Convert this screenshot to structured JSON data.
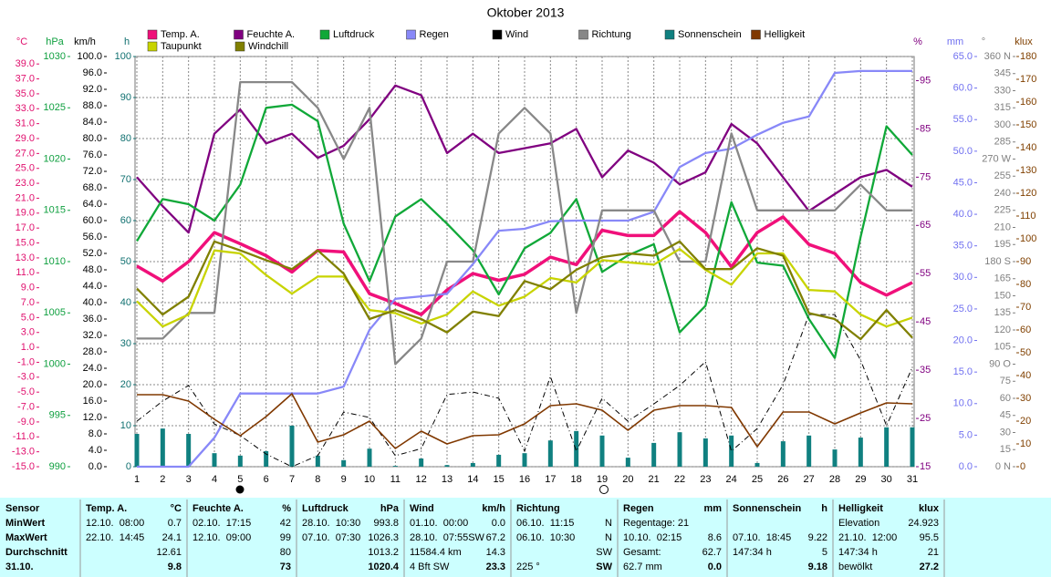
{
  "chart_data": {
    "type": "line",
    "title": "Oktober 2013",
    "categories": [
      1,
      2,
      3,
      4,
      5,
      6,
      7,
      8,
      9,
      10,
      11,
      12,
      13,
      14,
      15,
      16,
      17,
      18,
      19,
      20,
      21,
      22,
      23,
      24,
      25,
      26,
      27,
      28,
      29,
      30,
      31
    ],
    "grid": true,
    "axes": [
      {
        "unit": "°C",
        "color": "#e0106e",
        "ylim": [
          -15,
          40
        ],
        "yticks": [
          {
            "value": -15,
            "label": "-15.0"
          },
          {
            "value": -13,
            "label": "-13.0"
          },
          {
            "value": -11,
            "label": "-11.0"
          },
          {
            "value": -9,
            "label": "-9.0"
          },
          {
            "value": -7,
            "label": "-7.0"
          },
          {
            "value": -5,
            "label": "-5.0"
          },
          {
            "value": -3,
            "label": "-3.0"
          },
          {
            "value": -1,
            "label": "-1.0"
          },
          {
            "value": 1,
            "label": "1.0"
          },
          {
            "value": 3,
            "label": "3.0"
          },
          {
            "value": 5,
            "label": "5.0"
          },
          {
            "value": 7,
            "label": "7.0"
          },
          {
            "value": 9,
            "label": "9.0"
          },
          {
            "value": 11,
            "label": "11.0"
          },
          {
            "value": 13,
            "label": "13.0"
          },
          {
            "value": 15,
            "label": "15.0"
          },
          {
            "value": 17,
            "label": "17.0"
          },
          {
            "value": 19,
            "label": "19.0"
          },
          {
            "value": 21,
            "label": "21.0"
          },
          {
            "value": 23,
            "label": "23.0"
          },
          {
            "value": 25,
            "label": "25.0"
          },
          {
            "value": 27,
            "label": "27.0"
          },
          {
            "value": 29,
            "label": "29.0"
          },
          {
            "value": 31,
            "label": "31.0"
          },
          {
            "value": 33,
            "label": "33.0"
          },
          {
            "value": 35,
            "label": "35.0"
          },
          {
            "value": 37,
            "label": "37.0"
          },
          {
            "value": 39,
            "label": "39.0"
          }
        ]
      },
      {
        "unit": "hPa",
        "color": "#10a040",
        "ylim": [
          990,
          1030
        ],
        "yticks": [
          990,
          995,
          1000,
          1005,
          1010,
          1015,
          1020,
          1025,
          1030
        ]
      },
      {
        "unit": "km/h",
        "color": "#000000",
        "ylim": [
          0,
          100
        ],
        "yticks": [
          {
            "value": 0,
            "label": "0.0"
          },
          {
            "value": 4,
            "label": "4.0"
          },
          {
            "value": 8,
            "label": "8.0"
          },
          {
            "value": 12,
            "label": "12.0"
          },
          {
            "value": 16,
            "label": "16.0"
          },
          {
            "value": 20,
            "label": "20.0"
          },
          {
            "value": 24,
            "label": "24.0"
          },
          {
            "value": 28,
            "label": "28.0"
          },
          {
            "value": 32,
            "label": "32.0"
          },
          {
            "value": 36,
            "label": "36.0"
          },
          {
            "value": 40,
            "label": "40.0"
          },
          {
            "value": 44,
            "label": "44.0"
          },
          {
            "value": 48,
            "label": "48.0"
          },
          {
            "value": 52,
            "label": "52.0"
          },
          {
            "value": 56,
            "label": "56.0"
          },
          {
            "value": 60,
            "label": "60.0"
          },
          {
            "value": 64,
            "label": "64.0"
          },
          {
            "value": 68,
            "label": "68.0"
          },
          {
            "value": 72,
            "label": "72.0"
          },
          {
            "value": 76,
            "label": "76.0"
          },
          {
            "value": 80,
            "label": "80.0"
          },
          {
            "value": 84,
            "label": "84.0"
          },
          {
            "value": 88,
            "label": "88.0"
          },
          {
            "value": 92,
            "label": "92.0"
          },
          {
            "value": 96,
            "label": "96.0"
          },
          {
            "value": 100,
            "label": "100.0"
          }
        ]
      },
      {
        "unit": "h",
        "color": "#107070",
        "ylim": [
          0,
          100
        ],
        "yticks": [
          0,
          10,
          20,
          30,
          40,
          50,
          60,
          70,
          80,
          90,
          100
        ],
        "grid": true
      },
      {
        "unit": "%",
        "color": "#800080",
        "ylim": [
          15,
          100
        ],
        "yticks": [
          15,
          25,
          35,
          45,
          55,
          65,
          75,
          85,
          95
        ]
      },
      {
        "unit": "mm",
        "color": "#7070f0",
        "ylim": [
          0,
          65
        ],
        "yticks": [
          {
            "value": 0,
            "label": "0.0"
          },
          {
            "value": 5,
            "label": "5.0"
          },
          {
            "value": 10,
            "label": "10.0"
          },
          {
            "value": 15,
            "label": "15.0"
          },
          {
            "value": 20,
            "label": "20.0"
          },
          {
            "value": 25,
            "label": "25.0"
          },
          {
            "value": 30,
            "label": "30.0"
          },
          {
            "value": 35,
            "label": "35.0"
          },
          {
            "value": 40,
            "label": "40.0"
          },
          {
            "value": 45,
            "label": "45.0"
          },
          {
            "value": 50,
            "label": "50.0"
          },
          {
            "value": 55,
            "label": "55.0"
          },
          {
            "value": 60,
            "label": "60.0"
          },
          {
            "value": 65,
            "label": "65.0"
          }
        ]
      },
      {
        "unit": "°",
        "color": "#808080",
        "ylim": [
          0,
          360
        ],
        "yticks": [
          {
            "value": 0,
            "label": "0 N"
          },
          15,
          30,
          45,
          60,
          75,
          {
            "value": 90,
            "label": "90 O"
          },
          105,
          120,
          135,
          150,
          165,
          {
            "value": 180,
            "label": "180 S"
          },
          195,
          210,
          225,
          240,
          255,
          {
            "value": 270,
            "label": "270 W"
          },
          285,
          300,
          315,
          330,
          345,
          {
            "value": 360,
            "label": "360 N"
          }
        ]
      },
      {
        "unit": "klux",
        "color": "#804000",
        "ylim": [
          0,
          180
        ],
        "yticks": [
          0,
          10,
          20,
          30,
          40,
          50,
          60,
          70,
          80,
          90,
          100,
          110,
          120,
          130,
          140,
          150,
          160,
          170,
          180
        ]
      }
    ],
    "series": [
      {
        "name": "Temp. A.",
        "color": "#f0107a",
        "axis": "°C",
        "values": [
          11.9,
          9.9,
          12.5,
          16.4,
          14.9,
          13.3,
          11.1,
          14.0,
          13.8,
          8.2,
          6.9,
          5.4,
          8.7,
          10.9,
          10.0,
          10.8,
          13.1,
          12.1,
          16.7,
          16.0,
          16.0,
          19.2,
          16.4,
          11.8,
          16.4,
          18.5,
          14.8,
          13.6,
          9.7,
          8.0,
          9.7
        ]
      },
      {
        "name": "Feuchte A.",
        "color": "#800080",
        "axis": "%",
        "values": [
          75,
          69,
          63.5,
          84,
          89,
          82,
          84,
          79,
          81.5,
          87,
          94,
          92,
          80,
          84,
          80,
          81,
          82,
          85,
          75,
          80.5,
          78,
          73.5,
          76,
          86,
          82,
          75,
          68,
          71.5,
          75,
          76.5,
          73
        ]
      },
      {
        "name": "Luftdruck",
        "color": "#10a838",
        "axis": "hPa",
        "values": [
          1012.0,
          1016.1,
          1015.6,
          1014.0,
          1017.5,
          1025.0,
          1025.3,
          1023.7,
          1013.7,
          1008.1,
          1014.4,
          1016.1,
          1013.7,
          1011.1,
          1006.8,
          1011.3,
          1012.8,
          1016.1,
          1009.0,
          1010.6,
          1011.7,
          1003.1,
          1005.7,
          1015.8,
          1009.9,
          1009.6,
          1004.4,
          1000.6,
          1012.4,
          1023.2,
          1020.4
        ]
      },
      {
        "name": "Regen",
        "color": "#8888f8",
        "axis": "mm",
        "values": [
          0,
          0,
          0,
          4.6,
          11.6,
          11.6,
          11.6,
          11.6,
          12.7,
          21.7,
          26.6,
          27.0,
          27.4,
          32.1,
          37.4,
          37.7,
          38.9,
          39.0,
          39.0,
          39.0,
          40.4,
          47.5,
          49.7,
          50.4,
          52.6,
          54.5,
          55.5,
          62.4,
          62.7,
          62.7,
          62.7
        ]
      },
      {
        "name": "Wind",
        "color": "#000000",
        "axis": "km/h",
        "dash": true,
        "values": [
          11.1,
          16.0,
          19.8,
          10.4,
          7.6,
          3.1,
          0,
          2.7,
          13.3,
          12.0,
          2.7,
          4.4,
          17.6,
          18.2,
          16.7,
          3.8,
          22.0,
          3.8,
          16.7,
          11.1,
          15.3,
          19.8,
          25.6,
          3.8,
          9.3,
          20.0,
          37.1,
          37.1,
          26.0,
          10.0,
          24.2
        ]
      },
      {
        "name": "Richtung",
        "color": "#888888",
        "axis": "°",
        "values": [
          112.5,
          112.5,
          135,
          135,
          337.5,
          337.5,
          337.5,
          315,
          270,
          315,
          90,
          112.5,
          180,
          180,
          292.5,
          315,
          292.5,
          135,
          225,
          225,
          225,
          180,
          180,
          292.5,
          225,
          225,
          225,
          225,
          247.5,
          225,
          225
        ]
      },
      {
        "name": "Sonnenschein",
        "color": "#108080",
        "axis": "h",
        "type": "bar",
        "values": [
          8.0,
          9.3,
          8.0,
          3.3,
          2.7,
          3.8,
          10.0,
          2.7,
          1.6,
          4.4,
          0.2,
          2.0,
          0.4,
          0.9,
          2.9,
          3.3,
          6.4,
          8.7,
          7.6,
          2.2,
          5.8,
          8.4,
          6.9,
          7.6,
          0.9,
          6.2,
          7.6,
          4.2,
          7.1,
          9.6,
          9.6
        ]
      },
      {
        "name": "Helligkeit",
        "color": "#803800",
        "axis": "klux",
        "values": [
          31.6,
          31.6,
          28.8,
          20.8,
          13.6,
          22.0,
          32.0,
          10.8,
          14.0,
          20.0,
          8.0,
          15.6,
          10.0,
          13.6,
          14.0,
          18.8,
          26.8,
          27.6,
          24.8,
          16.0,
          24.8,
          26.8,
          26.8,
          26.0,
          8.8,
          24.0,
          24.0,
          18.8,
          23.6,
          28.0,
          27.6
        ]
      },
      {
        "name": "Taupunkt",
        "color": "#c8d400",
        "axis": "°C",
        "values": [
          7.2,
          3.8,
          5.4,
          14.0,
          13.6,
          10.7,
          8.2,
          10.5,
          10.5,
          6.0,
          5.6,
          4.2,
          5.4,
          8.5,
          6.6,
          7.8,
          10.3,
          9.7,
          12.7,
          12.4,
          12.1,
          14.2,
          11.4,
          9.4,
          13.6,
          13.6,
          8.7,
          8.5,
          5.4,
          3.8,
          5.0
        ]
      },
      {
        "name": "Windchill",
        "color": "#808000",
        "axis": "°C",
        "values": [
          8.9,
          5.4,
          7.8,
          15.2,
          14.0,
          12.7,
          11.5,
          14.0,
          10.9,
          4.8,
          6.0,
          4.8,
          3.0,
          5.8,
          5.2,
          9.9,
          8.8,
          11.4,
          13.1,
          13.6,
          13.3,
          15.2,
          11.5,
          11.5,
          14.3,
          13.3,
          5.6,
          4.8,
          2.1,
          6.0,
          2.3
        ]
      }
    ]
  },
  "table": {
    "header_label": "Sensor",
    "row_labels": [
      "MinWert",
      "MaxWert",
      "Durchschnitt",
      "31.10."
    ],
    "columns": [
      {
        "title": "Temp. A.",
        "unit": "°C",
        "cells": [
          {
            "left": "12.10.  08:00",
            "right": "0.7"
          },
          {
            "left": "22.10.  14:45",
            "right": "24.1"
          },
          {
            "right": "12.61"
          },
          {
            "right": "9.8"
          }
        ]
      },
      {
        "title": "Feuchte A.",
        "unit": "%",
        "cells": [
          {
            "left": "02.10.  17:15",
            "right": "42"
          },
          {
            "left": "12.10.  09:00",
            "right": "99"
          },
          {
            "right": "80"
          },
          {
            "right": "73"
          }
        ]
      },
      {
        "title": "Luftdruck",
        "unit": "hPa",
        "cells": [
          {
            "left": "28.10.  10:30",
            "right": "993.8"
          },
          {
            "left": "07.10.  07:30",
            "right": "1026.3"
          },
          {
            "right": "1013.2"
          },
          {
            "right": "1020.4"
          }
        ]
      },
      {
        "title": "Wind",
        "unit": "km/h",
        "cells": [
          {
            "left": "01.10.  00:00",
            "right": "0.0"
          },
          {
            "left": "28.10.  07:55SW",
            "right": "67.2"
          },
          {
            "left": "11584.4 km",
            "right": "14.3"
          },
          {
            "left": "4 Bft SW",
            "right": "23.3"
          }
        ]
      },
      {
        "title": "Richtung",
        "cells": [
          {
            "left": "06.10.  11:15",
            "right": "N"
          },
          {
            "left": "06.10.  10:30",
            "right": "N"
          },
          {
            "right": "SW"
          },
          {
            "left": "225 °",
            "right": "SW"
          }
        ]
      },
      {
        "title": "Regen",
        "unit": "mm",
        "cells": [
          {
            "left": "Regentage: 21"
          },
          {
            "left": "10.10.  02:15",
            "right": "8.6"
          },
          {
            "left": "Gesamt:",
            "right": "62.7"
          },
          {
            "left": "62.7 mm",
            "right": "0.0"
          }
        ]
      },
      {
        "title": "Sonnenschein",
        "unit": "h",
        "cells": [
          null,
          {
            "left": "07.10.  18:45",
            "right": "9.22"
          },
          {
            "left": "147:34 h",
            "right": "5"
          },
          {
            "right": "9.18"
          }
        ]
      },
      {
        "title": "Helligkeit",
        "unit": "klux",
        "cells": [
          {
            "left": "Elevation",
            "right": "24.923"
          },
          {
            "left": "21.10.  12:00",
            "right": "95.5"
          },
          {
            "left": "147:34 h",
            "right": "21"
          },
          {
            "left": "bewölkt",
            "right": "27.2"
          }
        ]
      }
    ]
  }
}
